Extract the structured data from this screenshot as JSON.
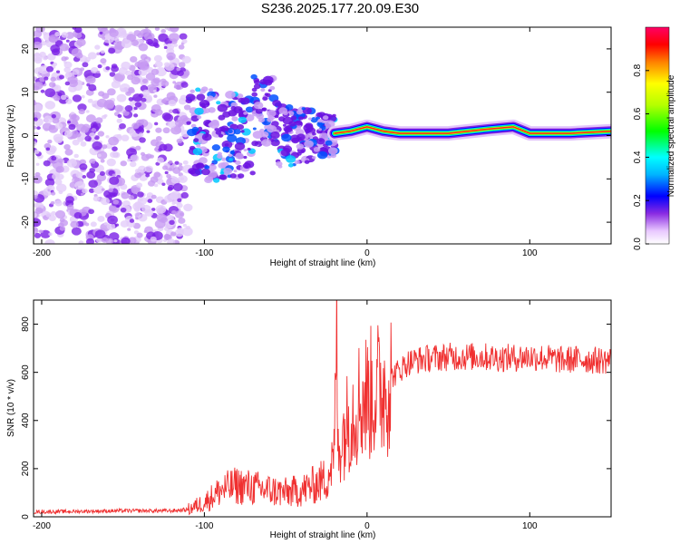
{
  "title": "S236.2025.177.20.09.E30",
  "chart_data": [
    {
      "type": "heatmap",
      "xlabel": "Height of straight line (km)",
      "ylabel": "Frequency (Hz)",
      "xlim": [
        -205,
        150
      ],
      "ylim": [
        -25,
        25
      ],
      "xticks": [
        -200,
        -100,
        0,
        100
      ],
      "yticks": [
        -20,
        -10,
        0,
        10,
        20
      ],
      "colorbar": {
        "label": "Normalized spectral amplitude",
        "range": [
          0,
          1
        ],
        "ticks": [
          "0.0",
          "0.2",
          "0.4",
          "0.6",
          "0.8"
        ]
      },
      "ridge": [
        {
          "x": -20,
          "y": 0.5
        },
        {
          "x": -10,
          "y": 1
        },
        {
          "x": 0,
          "y": 2
        },
        {
          "x": 10,
          "y": 1
        },
        {
          "x": 20,
          "y": 0.5
        },
        {
          "x": 50,
          "y": 0.5
        },
        {
          "x": 75,
          "y": 1.5
        },
        {
          "x": 90,
          "y": 2
        },
        {
          "x": 100,
          "y": 0.5
        },
        {
          "x": 125,
          "y": 0.5
        },
        {
          "x": 150,
          "y": 1
        }
      ],
      "scatter_region": {
        "x_from": -205,
        "x_to": -110,
        "y_from": -25,
        "y_to": 25
      }
    },
    {
      "type": "line",
      "xlabel": "Height of straight line (km)",
      "ylabel": "SNR (10 * v/v)",
      "xlim": [
        -205,
        150
      ],
      "ylim": [
        0,
        900
      ],
      "xticks": [
        -200,
        -100,
        0,
        100
      ],
      "yticks": [
        0,
        200,
        400,
        600,
        800
      ],
      "series": [
        {
          "color": "#f03030",
          "x": [
            -205,
            -150,
            -120,
            -110,
            -100,
            -90,
            -80,
            -70,
            -60,
            -50,
            -40,
            -30,
            -25,
            -20,
            -19,
            -18,
            -15,
            -10,
            -5,
            0,
            5,
            10,
            15,
            20,
            25,
            30,
            40,
            50,
            60,
            70,
            80,
            90,
            100,
            110,
            120,
            130,
            140,
            150
          ],
          "y": [
            20,
            25,
            25,
            30,
            60,
            110,
            130,
            120,
            110,
            100,
            110,
            140,
            160,
            250,
            890,
            280,
            340,
            430,
            480,
            500,
            520,
            540,
            580,
            610,
            640,
            650,
            660,
            665,
            665,
            665,
            660,
            660,
            665,
            660,
            650,
            655,
            650,
            650
          ]
        }
      ]
    }
  ]
}
